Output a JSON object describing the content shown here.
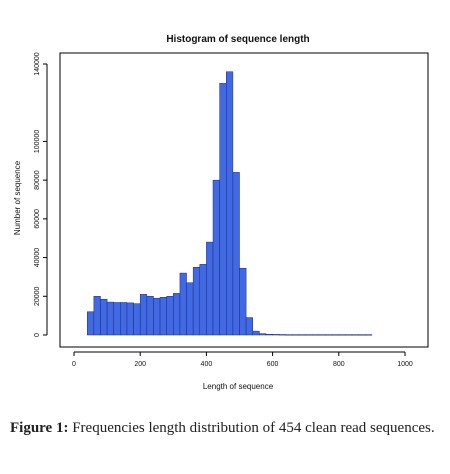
{
  "chart_data": {
    "type": "bar",
    "title": "Histogram of sequence length",
    "xlabel": "Length of sequence",
    "ylabel": "Number of sequence",
    "xlim": [
      0,
      1000
    ],
    "ylim": [
      0,
      140000
    ],
    "x_ticks": [
      "0",
      "200",
      "400",
      "600",
      "800",
      "1000"
    ],
    "y_ticks": [
      "0",
      "20000",
      "40000",
      "60000",
      "80000",
      "100000",
      "140000"
    ],
    "y_tick_values": [
      0,
      20000,
      40000,
      60000,
      80000,
      100000,
      140000
    ],
    "bin_width": 20,
    "bin_starts": [
      40,
      60,
      80,
      100,
      120,
      140,
      160,
      180,
      200,
      220,
      240,
      260,
      280,
      300,
      320,
      340,
      360,
      380,
      400,
      420,
      440,
      460,
      480,
      500,
      520,
      540,
      560,
      580,
      600,
      620,
      640,
      660,
      680,
      700,
      720,
      740,
      760,
      780,
      800,
      820,
      840,
      860,
      880
    ],
    "values": [
      12000,
      20000,
      18500,
      17000,
      16800,
      16800,
      16600,
      16200,
      21000,
      20000,
      19000,
      19500,
      20000,
      21500,
      32000,
      27000,
      35000,
      36500,
      48000,
      80000,
      130000,
      136000,
      84000,
      34500,
      9000,
      2000,
      700,
      400,
      300,
      250,
      200,
      200,
      200,
      200,
      200,
      200,
      200,
      200,
      200,
      200,
      200,
      200,
      200
    ],
    "bar_color": "#4169e1",
    "grid": false
  },
  "caption": {
    "label": "Figure 1:",
    "text": " Frequencies length distribution of 454 clean read sequences."
  }
}
